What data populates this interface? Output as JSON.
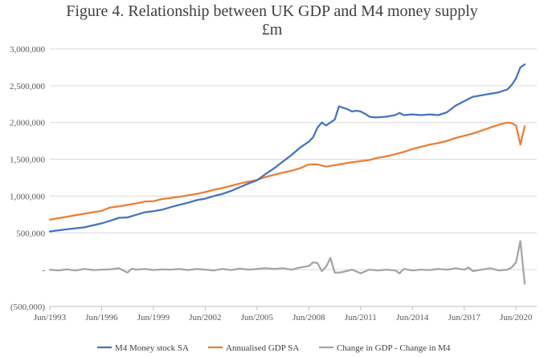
{
  "chart_data": {
    "type": "line",
    "title": "Figure 4. Relationship between UK GDP and M4 money supply",
    "subtitle": "£m",
    "xlabel": "",
    "ylabel": "",
    "ylim": [
      -500000,
      3000000
    ],
    "y_ticks": [
      -500000,
      0,
      500000,
      1000000,
      1500000,
      2000000,
      2500000,
      3000000
    ],
    "y_tick_labels": [
      "(500,000)",
      "-",
      "500,000",
      "1,000,000",
      "1,500,000",
      "2,000,000",
      "2,500,000",
      "3,000,000"
    ],
    "x_tick_labels": [
      "Jun/1993",
      "Jun/1996",
      "Jun/1999",
      "Jun/2002",
      "Jun/2005",
      "Jun/2008",
      "Jun/2011",
      "Jun/2014",
      "Jun/2017",
      "Jun/2020"
    ],
    "x_range": [
      1993.0,
      2021.2
    ],
    "legend_position": "bottom",
    "series": [
      {
        "name": "M4 Money stock SA",
        "color": "#4472C4",
        "x": [
          1993.0,
          1993.5,
          1994.0,
          1995.0,
          1996.0,
          1996.5,
          1997.0,
          1997.5,
          1998.0,
          1998.5,
          1999.0,
          1999.5,
          2000.0,
          2000.5,
          2001.0,
          2001.5,
          2002.0,
          2002.5,
          2003.0,
          2003.5,
          2004.0,
          2004.5,
          2005.0,
          2005.5,
          2006.0,
          2006.5,
          2007.0,
          2007.5,
          2008.0,
          2008.25,
          2008.5,
          2008.75,
          2009.0,
          2009.25,
          2009.5,
          2009.75,
          2010.0,
          2010.25,
          2010.5,
          2010.75,
          2011.0,
          2011.25,
          2011.5,
          2011.75,
          2012.0,
          2012.5,
          2013.0,
          2013.25,
          2013.5,
          2014.0,
          2014.5,
          2015.0,
          2015.5,
          2016.0,
          2016.5,
          2017.0,
          2017.5,
          2018.0,
          2018.5,
          2019.0,
          2019.5,
          2019.75,
          2020.0,
          2020.25,
          2020.5
        ],
        "values": [
          520000,
          535000,
          550000,
          575000,
          630000,
          665000,
          705000,
          710000,
          745000,
          780000,
          795000,
          815000,
          850000,
          880000,
          910000,
          945000,
          965000,
          1000000,
          1030000,
          1070000,
          1120000,
          1170000,
          1215000,
          1300000,
          1380000,
          1470000,
          1560000,
          1660000,
          1740000,
          1800000,
          1930000,
          2000000,
          1960000,
          2000000,
          2040000,
          2220000,
          2200000,
          2180000,
          2150000,
          2160000,
          2150000,
          2120000,
          2080000,
          2070000,
          2070000,
          2080000,
          2100000,
          2130000,
          2100000,
          2110000,
          2100000,
          2110000,
          2100000,
          2140000,
          2230000,
          2290000,
          2350000,
          2370000,
          2390000,
          2410000,
          2450000,
          2510000,
          2600000,
          2750000,
          2790000
        ]
      },
      {
        "name": "Annualised GDP SA",
        "color": "#ED7D31",
        "x": [
          1993.0,
          1994.0,
          1995.0,
          1996.0,
          1996.5,
          1997.0,
          1997.5,
          1998.0,
          1998.5,
          1999.0,
          1999.5,
          2000.0,
          2000.5,
          2001.0,
          2001.5,
          2002.0,
          2002.5,
          2003.0,
          2003.5,
          2004.0,
          2004.5,
          2005.0,
          2005.5,
          2006.0,
          2006.5,
          2007.0,
          2007.5,
          2008.0,
          2008.5,
          2009.0,
          2009.5,
          2010.0,
          2010.5,
          2011.0,
          2011.5,
          2012.0,
          2012.5,
          2013.0,
          2013.5,
          2014.0,
          2014.5,
          2015.0,
          2015.5,
          2016.0,
          2016.5,
          2017.0,
          2017.5,
          2018.0,
          2018.5,
          2019.0,
          2019.5,
          2019.75,
          2020.0,
          2020.25,
          2020.5
        ],
        "values": [
          680000,
          720000,
          760000,
          800000,
          845000,
          860000,
          880000,
          900000,
          925000,
          930000,
          960000,
          975000,
          990000,
          1010000,
          1030000,
          1055000,
          1085000,
          1110000,
          1140000,
          1170000,
          1195000,
          1220000,
          1260000,
          1290000,
          1320000,
          1345000,
          1380000,
          1430000,
          1430000,
          1400000,
          1420000,
          1440000,
          1460000,
          1475000,
          1490000,
          1520000,
          1540000,
          1570000,
          1600000,
          1640000,
          1670000,
          1700000,
          1720000,
          1750000,
          1790000,
          1820000,
          1850000,
          1890000,
          1930000,
          1970000,
          2000000,
          1990000,
          1960000,
          1700000,
          1950000
        ]
      },
      {
        "name": "Change in GDP - Change in M4",
        "color": "#A5A5A5",
        "x": [
          1993.0,
          1993.5,
          1994.0,
          1994.5,
          1995.0,
          1995.5,
          1996.0,
          1996.5,
          1997.0,
          1997.25,
          1997.5,
          1997.75,
          1998.0,
          1998.5,
          1999.0,
          1999.5,
          2000.0,
          2000.5,
          2001.0,
          2001.5,
          2002.0,
          2002.5,
          2003.0,
          2003.5,
          2004.0,
          2004.5,
          2005.0,
          2005.5,
          2006.0,
          2006.5,
          2007.0,
          2007.5,
          2008.0,
          2008.25,
          2008.5,
          2008.75,
          2009.0,
          2009.25,
          2009.5,
          2009.75,
          2010.0,
          2010.5,
          2011.0,
          2011.5,
          2012.0,
          2012.5,
          2013.0,
          2013.25,
          2013.5,
          2014.0,
          2014.5,
          2015.0,
          2015.5,
          2016.0,
          2016.5,
          2017.0,
          2017.25,
          2017.5,
          2018.0,
          2018.5,
          2019.0,
          2019.5,
          2019.75,
          2020.0,
          2020.25,
          2020.5
        ],
        "values": [
          0,
          -10000,
          5000,
          -10000,
          10000,
          -5000,
          0,
          5000,
          20000,
          -10000,
          -40000,
          15000,
          0,
          10000,
          -5000,
          5000,
          0,
          10000,
          -5000,
          10000,
          0,
          -10000,
          10000,
          -5000,
          15000,
          0,
          10000,
          20000,
          10000,
          20000,
          0,
          30000,
          50000,
          100000,
          90000,
          -20000,
          40000,
          160000,
          -40000,
          -40000,
          -30000,
          0,
          -50000,
          0,
          -10000,
          0,
          -10000,
          -50000,
          10000,
          -10000,
          0,
          -5000,
          10000,
          0,
          20000,
          0,
          30000,
          -20000,
          0,
          20000,
          -10000,
          0,
          30000,
          100000,
          390000,
          -190000
        ]
      }
    ]
  }
}
